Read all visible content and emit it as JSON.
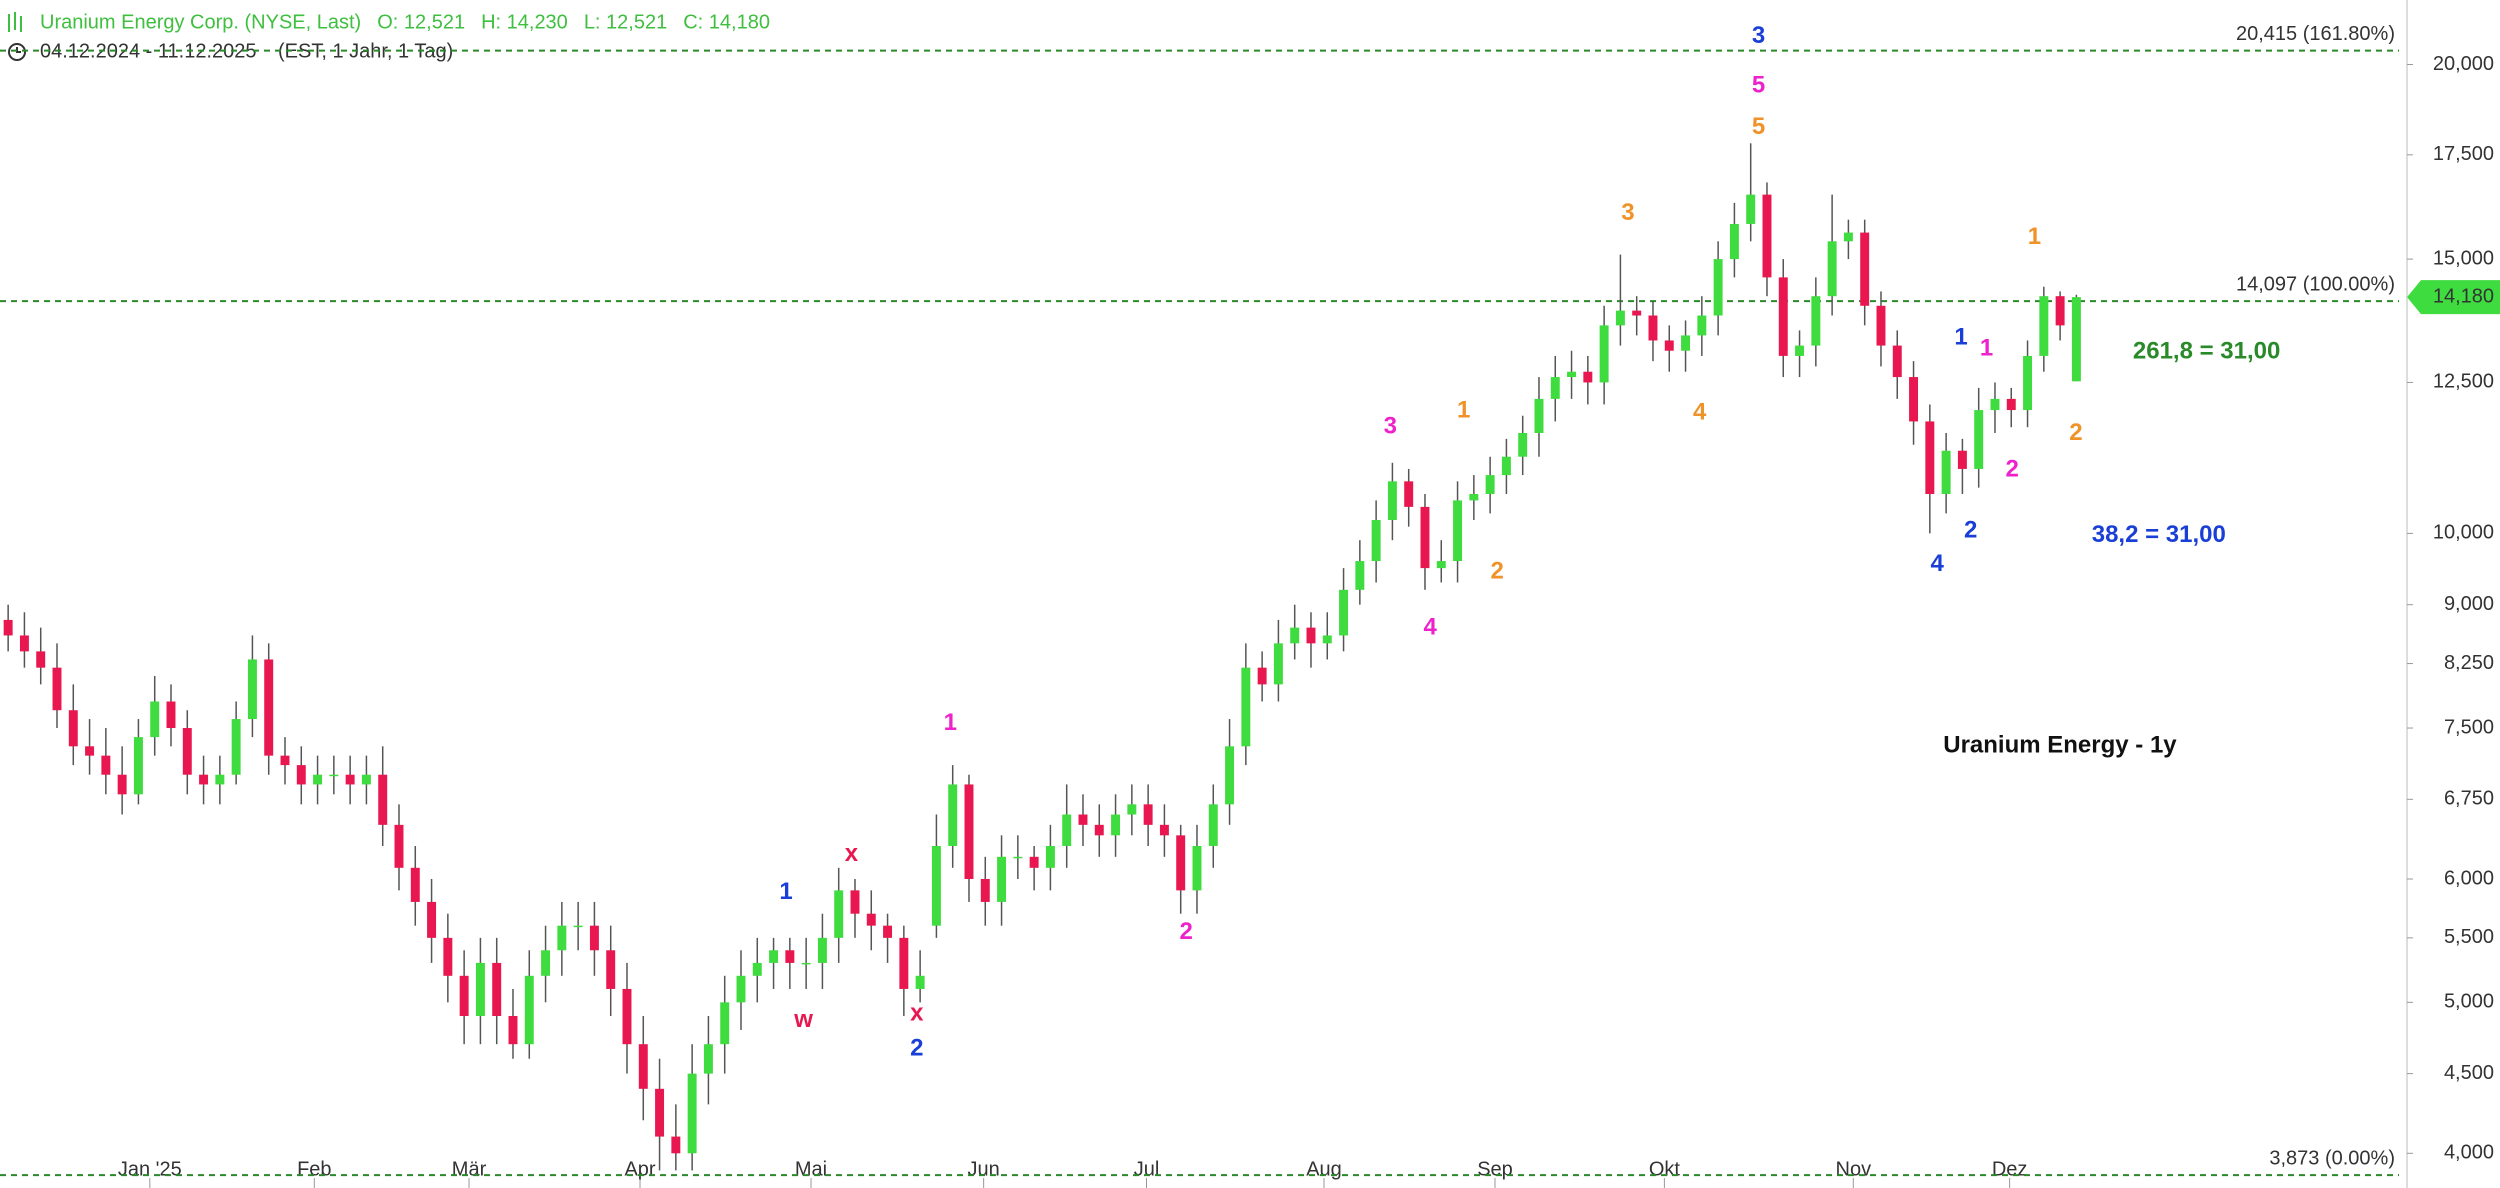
{
  "chart_data": {
    "type": "candlestick",
    "header": {
      "title": "Uranium Energy Corp. (NYSE, Last)",
      "ohlc": [
        "O: 12,521",
        "H: 14,230",
        "L: 12,521",
        "C: 14,180"
      ],
      "range": "04.12.2024 - 11.12.2025",
      "info": "(EST, 1 Jahr, 1 Tag)"
    },
    "log_scale": true,
    "ylim": [
      3.8,
      22.0
    ],
    "yticks": [
      {
        "value": 4,
        "label": "4,000"
      },
      {
        "value": 4.5,
        "label": "4,500"
      },
      {
        "value": 5,
        "label": "5,000"
      },
      {
        "value": 5.5,
        "label": "5,500"
      },
      {
        "value": 6,
        "label": "6,000"
      },
      {
        "value": 6.75,
        "label": "6,750"
      },
      {
        "value": 7.5,
        "label": "7,500"
      },
      {
        "value": 8.25,
        "label": "8,250"
      },
      {
        "value": 9,
        "label": "9,000"
      },
      {
        "value": 10,
        "label": "10,000"
      },
      {
        "value": 12.5,
        "label": "12,500"
      },
      {
        "value": 15,
        "label": "15,000"
      },
      {
        "value": 17.5,
        "label": "17,500"
      },
      {
        "value": 20,
        "label": "20,000"
      }
    ],
    "xlim": [
      -0.5,
      147.3
    ],
    "xticks": [
      {
        "value": 8.7,
        "label": "Jan '25"
      },
      {
        "value": 18.8,
        "label": "Feb"
      },
      {
        "value": 28.3,
        "label": "Mär"
      },
      {
        "value": 38.8,
        "label": "Apr"
      },
      {
        "value": 49.3,
        "label": "Mai"
      },
      {
        "value": 59.9,
        "label": "Jun"
      },
      {
        "value": 69.9,
        "label": "Jul"
      },
      {
        "value": 80.8,
        "label": "Aug"
      },
      {
        "value": 91.3,
        "label": "Sep"
      },
      {
        "value": 101.7,
        "label": "Okt"
      },
      {
        "value": 113.3,
        "label": "Nov"
      },
      {
        "value": 122.9,
        "label": "Dez"
      }
    ],
    "up_color": "#3fdc3f",
    "down_color": "#e8174f",
    "open": [
      8.8,
      8.6,
      8.4,
      8.2,
      7.7,
      7.3,
      7.2,
      7.0,
      6.8,
      7.4,
      7.8,
      7.5,
      7.0,
      6.9,
      7.0,
      7.6,
      8.3,
      7.2,
      7.1,
      6.9,
      7.0,
      7.0,
      6.9,
      7.0,
      6.5,
      6.1,
      5.8,
      5.5,
      5.2,
      4.9,
      5.3,
      4.9,
      4.7,
      5.2,
      5.4,
      5.6,
      5.6,
      5.4,
      5.1,
      4.7,
      4.4,
      4.1,
      4.0,
      4.5,
      4.7,
      5.0,
      5.2,
      5.3,
      5.4,
      5.3,
      5.3,
      5.5,
      5.9,
      5.7,
      5.6,
      5.5,
      5.1,
      5.6,
      6.3,
      6.9,
      6.0,
      5.8,
      6.2,
      6.2,
      6.1,
      6.3,
      6.6,
      6.5,
      6.4,
      6.6,
      6.7,
      6.5,
      6.4,
      5.9,
      6.3,
      6.7,
      7.3,
      8.2,
      8.0,
      8.5,
      8.7,
      8.5,
      8.6,
      9.2,
      9.6,
      10.2,
      10.8,
      10.4,
      9.5,
      9.6,
      10.5,
      10.6,
      10.9,
      11.2,
      11.6,
      12.2,
      12.6,
      12.7,
      12.5,
      13.6,
      13.9,
      13.8,
      13.3,
      13.1,
      13.4,
      13.8,
      15.0,
      15.8,
      16.5,
      14.6,
      13.0,
      13.2,
      14.2,
      15.4,
      15.6,
      14.0,
      13.2,
      12.6,
      11.8,
      10.6,
      11.3,
      11.0,
      12.0,
      12.2,
      12.0,
      13.0,
      14.2,
      12.521
    ],
    "high": [
      9.0,
      8.9,
      8.7,
      8.5,
      8.0,
      7.6,
      7.5,
      7.3,
      7.6,
      8.1,
      8.0,
      7.7,
      7.2,
      7.2,
      7.8,
      8.6,
      8.5,
      7.4,
      7.3,
      7.2,
      7.2,
      7.2,
      7.2,
      7.3,
      6.7,
      6.3,
      6.0,
      5.7,
      5.4,
      5.5,
      5.5,
      5.1,
      5.4,
      5.6,
      5.8,
      5.8,
      5.8,
      5.6,
      5.3,
      4.9,
      4.6,
      4.3,
      4.7,
      4.9,
      5.2,
      5.4,
      5.5,
      5.5,
      5.5,
      5.5,
      5.7,
      6.1,
      6.0,
      5.9,
      5.7,
      5.6,
      5.4,
      6.6,
      7.1,
      7.0,
      6.2,
      6.4,
      6.4,
      6.3,
      6.5,
      6.9,
      6.8,
      6.7,
      6.8,
      6.9,
      6.9,
      6.7,
      6.5,
      6.5,
      6.9,
      7.6,
      8.5,
      8.4,
      8.8,
      9.0,
      8.9,
      8.9,
      9.5,
      9.9,
      10.5,
      11.1,
      11.0,
      10.6,
      9.9,
      10.8,
      10.9,
      11.2,
      11.5,
      11.9,
      12.6,
      13.0,
      13.1,
      13.0,
      14.0,
      15.1,
      14.2,
      14.1,
      13.6,
      13.7,
      14.2,
      15.4,
      16.3,
      17.8,
      16.8,
      15.0,
      13.5,
      14.6,
      16.5,
      15.9,
      15.9,
      14.3,
      13.5,
      12.9,
      12.1,
      11.6,
      11.5,
      12.4,
      12.5,
      12.4,
      13.3,
      14.4,
      14.3,
      14.23
    ],
    "low": [
      8.4,
      8.2,
      8.0,
      7.5,
      7.1,
      7.0,
      6.8,
      6.6,
      6.7,
      7.2,
      7.3,
      6.8,
      6.7,
      6.7,
      6.9,
      7.4,
      7.0,
      6.9,
      6.7,
      6.7,
      6.8,
      6.7,
      6.7,
      6.3,
      5.9,
      5.6,
      5.3,
      5.0,
      4.7,
      4.7,
      4.7,
      4.6,
      4.6,
      5.0,
      5.2,
      5.4,
      5.2,
      4.9,
      4.5,
      4.2,
      3.9,
      3.9,
      3.9,
      4.3,
      4.5,
      4.8,
      5.0,
      5.1,
      5.1,
      5.1,
      5.1,
      5.3,
      5.5,
      5.4,
      5.3,
      4.9,
      5.0,
      5.5,
      6.1,
      5.8,
      5.6,
      5.6,
      6.0,
      5.9,
      5.9,
      6.1,
      6.3,
      6.2,
      6.2,
      6.4,
      6.3,
      6.2,
      5.7,
      5.7,
      6.1,
      6.5,
      7.1,
      7.8,
      7.8,
      8.3,
      8.2,
      8.3,
      8.4,
      9.0,
      9.3,
      9.9,
      10.1,
      9.2,
      9.3,
      9.3,
      10.2,
      10.3,
      10.6,
      10.9,
      11.2,
      11.8,
      12.2,
      12.1,
      12.1,
      13.2,
      13.4,
      12.9,
      12.7,
      12.7,
      13.0,
      13.4,
      14.6,
      15.4,
      14.2,
      12.6,
      12.6,
      12.8,
      13.8,
      15.0,
      13.6,
      12.8,
      12.2,
      11.4,
      10.0,
      10.3,
      10.6,
      10.7,
      11.6,
      11.7,
      11.7,
      12.7,
      13.3,
      12.521
    ],
    "close": [
      8.6,
      8.4,
      8.2,
      7.7,
      7.3,
      7.2,
      7.0,
      6.8,
      7.4,
      7.8,
      7.5,
      7.0,
      6.9,
      7.0,
      7.6,
      8.3,
      7.2,
      7.1,
      6.9,
      7.0,
      7.0,
      6.9,
      7.0,
      6.5,
      6.1,
      5.8,
      5.5,
      5.2,
      4.9,
      5.3,
      4.9,
      4.7,
      5.2,
      5.4,
      5.6,
      5.6,
      5.4,
      5.1,
      4.7,
      4.4,
      4.1,
      4.0,
      4.5,
      4.7,
      5.0,
      5.2,
      5.3,
      5.4,
      5.3,
      5.3,
      5.5,
      5.9,
      5.7,
      5.6,
      5.5,
      5.1,
      5.2,
      6.3,
      6.9,
      6.0,
      5.8,
      6.2,
      6.2,
      6.1,
      6.3,
      6.6,
      6.5,
      6.4,
      6.6,
      6.7,
      6.5,
      6.4,
      5.9,
      6.3,
      6.7,
      7.3,
      8.2,
      8.0,
      8.5,
      8.7,
      8.5,
      8.6,
      9.2,
      9.6,
      10.2,
      10.8,
      10.4,
      9.5,
      9.6,
      10.5,
      10.6,
      10.9,
      11.2,
      11.6,
      12.2,
      12.6,
      12.7,
      12.5,
      13.6,
      13.9,
      13.8,
      13.3,
      13.1,
      13.4,
      13.8,
      15.0,
      15.8,
      16.5,
      14.6,
      13.0,
      13.2,
      14.2,
      15.4,
      15.6,
      14.0,
      13.2,
      12.6,
      11.8,
      10.6,
      11.3,
      11.0,
      12.0,
      12.2,
      12.0,
      13.0,
      14.2,
      13.6,
      14.18
    ],
    "levels": [
      {
        "value": 20.415,
        "label": "20,415 (161.80%)"
      },
      {
        "value": 14.097,
        "label": "14,097 (100.00%)"
      },
      {
        "value": 3.873,
        "label": "3,873 (0.00%)"
      }
    ],
    "level_color": "#2a8a2a",
    "last_price": {
      "value": 14.18,
      "label": "14,180"
    },
    "annotations": [
      {
        "text": "3",
        "color": "#1a3fd6"
      },
      {
        "text": "5",
        "color": "#ee22cc"
      },
      {
        "text": "5",
        "color": "#f0922a"
      },
      {
        "text": "3",
        "color": "#f0922a"
      },
      {
        "text": "4",
        "color": "#f0922a"
      },
      {
        "text": "1",
        "color": "#f0922a"
      },
      {
        "text": "2",
        "color": "#f0922a"
      },
      {
        "text": "1",
        "color": "#1a3fd6"
      },
      {
        "text": "1",
        "color": "#ee22cc"
      },
      {
        "text": "2",
        "color": "#ee22cc"
      },
      {
        "text": "2",
        "color": "#1a3fd6"
      },
      {
        "text": "4",
        "color": "#1a3fd6"
      },
      {
        "text": "3",
        "color": "#ee22cc"
      },
      {
        "text": "1",
        "color": "#f0922a"
      },
      {
        "text": "2",
        "color": "#f0922a"
      },
      {
        "text": "4",
        "color": "#ee22cc"
      },
      {
        "text": "1",
        "color": "#ee22cc"
      },
      {
        "text": "2",
        "color": "#ee22cc"
      },
      {
        "text": "1",
        "color": "#1a3fd6"
      },
      {
        "text": "x",
        "color": "#e8174f"
      },
      {
        "text": "w",
        "color": "#e8174f"
      },
      {
        "text": "x",
        "color": "#e8174f"
      },
      {
        "text": "2",
        "color": "#1a3fd6"
      },
      {
        "text": "261,8 = 31,00",
        "color": "#2a8a2a"
      },
      {
        "text": "38,2 = 31,00",
        "color": "#1a3fd6"
      },
      {
        "text": "Uranium Energy - 1y",
        "color": "#111111"
      }
    ]
  }
}
